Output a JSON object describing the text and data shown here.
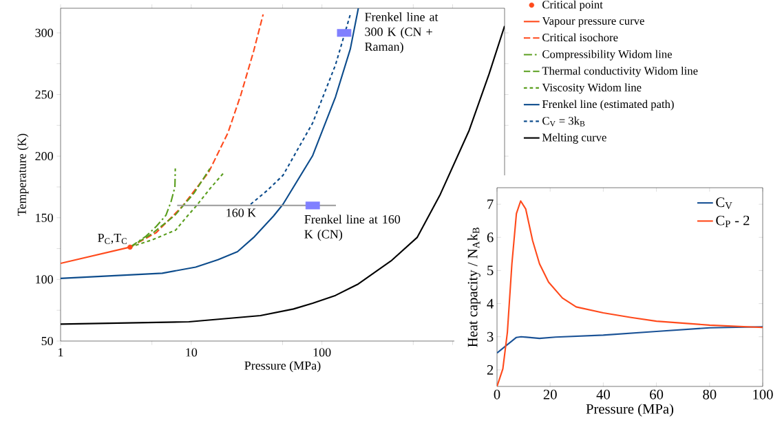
{
  "chart_data": [
    {
      "type": "line",
      "xlabel": "Pressure (MPa)",
      "ylabel": "Temperature (K)",
      "log": "x",
      "xlim": [
        1,
        2500
      ],
      "ylim": [
        50,
        320
      ],
      "xticks": [
        1,
        {
          "value": 5,
          "label": null
        },
        10,
        {
          "value": 50,
          "label": null
        },
        100,
        {
          "value": 500,
          "label": null
        },
        {
          "value": 1000,
          "label": null
        }
      ],
      "yticks": [
        50,
        {
          "value": 75,
          "label": null
        },
        100,
        {
          "value": 125,
          "label": null
        },
        150,
        {
          "value": 175,
          "label": null
        },
        200,
        {
          "value": 225,
          "label": null
        },
        250,
        {
          "value": 275,
          "label": null
        },
        300
      ],
      "legend": "right",
      "series": [
        {
          "name": "Critical point",
          "type": "scatter",
          "marker": "circle",
          "color": "#ff4a1c",
          "x": [
            3.4
          ],
          "values": [
            126.2
          ]
        },
        {
          "name": "Vapour pressure curve",
          "type": "line",
          "line_style": "solid",
          "color": "#ff4a1c",
          "x": [
            1,
            3.4
          ],
          "values": [
            113,
            126.2
          ]
        },
        {
          "name": "Critical isochore",
          "type": "line",
          "line_style": "dashed",
          "color": "#ff4a1c",
          "x": [
            3.4,
            5.4,
            8.5,
            13.6,
            19.1,
            24,
            30,
            35.5
          ],
          "values": [
            126.2,
            138,
            159,
            187,
            219,
            250,
            285,
            315
          ]
        },
        {
          "name": "Compressibility Widom line",
          "type": "line",
          "line_style": "dashdot",
          "color": "#5a9e1e",
          "x": [
            3.4,
            4.5,
            5.4,
            6.4,
            7.0,
            7.5,
            7.55
          ],
          "values": [
            126.2,
            135,
            143,
            152,
            163,
            175,
            190
          ]
        },
        {
          "name": "Thermal conductivity Widom line",
          "type": "line",
          "line_style": "dashed",
          "color": "#5a9e1e",
          "x": [
            3.4,
            5.0,
            7.5,
            10.5,
            13.9
          ],
          "values": [
            126.2,
            137,
            152,
            170,
            190
          ]
        },
        {
          "name": "Viscosity Widom line",
          "type": "line",
          "line_style": "dotted",
          "color": "#5a9e1e",
          "x": [
            3.4,
            5.0,
            7.6,
            9.1,
            11,
            14,
            17.9
          ],
          "values": [
            126.2,
            132,
            140,
            150,
            160,
            174,
            187
          ]
        },
        {
          "name": "Frenkel line (estimated path)",
          "type": "line",
          "line_style": "solid",
          "color": "#0d4c8c",
          "x": [
            1,
            6.0,
            10.8,
            16,
            22.6,
            30,
            42.7,
            50.4,
            85,
            127,
            165,
            190
          ],
          "values": [
            100.8,
            105,
            110,
            116,
            122.5,
            134,
            151.5,
            161,
            200.5,
            248,
            287,
            320
          ]
        },
        {
          "name": "C$_{V}$ = 3k$_{B}$",
          "type": "line",
          "line_style": "dotted",
          "color": "#0d4c8c",
          "x": [
            28.5,
            38,
            50.4,
            85,
            127,
            165
          ],
          "values": [
            161,
            172,
            184.5,
            227,
            274,
            315
          ]
        },
        {
          "name": "Melting curve",
          "type": "line",
          "line_style": "solid",
          "color": "#000000",
          "x": [
            1,
            9.6,
            33.8,
            60.6,
            85,
            127,
            190,
            338,
            535,
            805,
            1340,
            1900,
            2500
          ],
          "values": [
            63.7,
            65.6,
            70.6,
            76,
            80.7,
            87,
            96.3,
            115,
            134,
            169,
            221,
            266.5,
            305.6
          ]
        },
        {
          "type": "line",
          "line_style": "solid",
          "color": "#999999",
          "x": [
            7.8,
            128
          ],
          "values": [
            160,
            160
          ]
        },
        {
          "type": "scatter",
          "marker": "square",
          "color": "#8080ff",
          "x": [
            148,
            85
          ],
          "values": [
            300,
            160
          ]
        }
      ],
      "annotations": [
        {
          "text": "P$_{C}$,T$_{C}$",
          "x": 3.4,
          "y": 126.2
        },
        {
          "text": "160 K",
          "x": 24,
          "y": 160
        },
        {
          "text": "Frenkel line at 300 K (CN + Raman)",
          "x": 148,
          "y": 300
        },
        {
          "text": "Frenkel line at 160 K (CN)",
          "x": 85,
          "y": 160
        }
      ]
    },
    {
      "type": "line",
      "xlabel": "Pressure (MPa)",
      "ylabel": "Heat capacity / N$_{A}$k$_{B}$",
      "xlim": [
        0,
        100
      ],
      "ylim": [
        1.5,
        7.5
      ],
      "xticks": [
        0,
        20,
        40,
        60,
        80,
        100
      ],
      "yticks": [
        2,
        3,
        4,
        5,
        6,
        7
      ],
      "legend": "top right",
      "series": [
        {
          "name": "C$_{V}$",
          "color": "#1a5296",
          "x": [
            0,
            7.3,
            9.1,
            16,
            22,
            40,
            60,
            80,
            100
          ],
          "values": [
            2.51,
            2.98,
            3.0,
            2.95,
            2.99,
            3.05,
            3.16,
            3.27,
            3.3
          ]
        },
        {
          "name": "C$_{P}$ - 2",
          "color": "#ff4a1c",
          "x": [
            0,
            2.2,
            3.9,
            5.6,
            7.3,
            8.9,
            10.8,
            13.4,
            16,
            19.4,
            24.6,
            29.8,
            40,
            50.5,
            60,
            80,
            100
          ],
          "values": [
            1.5,
            2.03,
            3.13,
            5.2,
            6.72,
            7.1,
            6.86,
            5.9,
            5.2,
            4.65,
            4.17,
            3.9,
            3.72,
            3.58,
            3.47,
            3.35,
            3.28
          ]
        }
      ]
    }
  ]
}
